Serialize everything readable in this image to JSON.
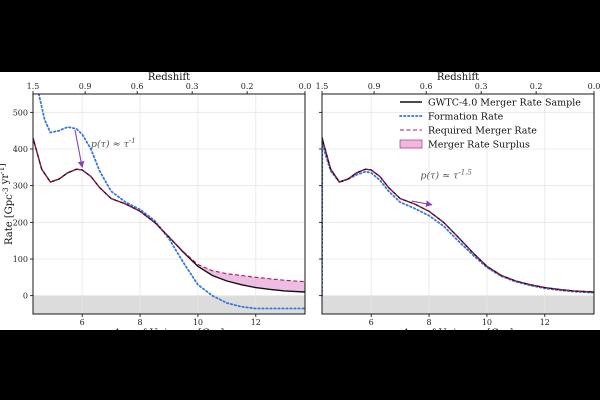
{
  "figure": {
    "colors": {
      "background": "#000000",
      "sample": "#111111",
      "formation": "#3a78d8",
      "required": "#b0155a",
      "surplus_fill": "#e8a8d8",
      "shade": "#dcdcdc",
      "arrow": "#8844aa",
      "grid": "#e6e6e6"
    }
  },
  "chart_data": [
    {
      "type": "line",
      "panel": "left",
      "xlabel": "Age of Universe [Gyr]",
      "ylabel": "Rate [Gpc^-3 yr^-1]",
      "top_axis_label": "Redshift",
      "xlim": [
        4.3,
        13.7
      ],
      "ylim": [
        -50,
        550
      ],
      "x_ticks": [
        6,
        8,
        10,
        12
      ],
      "y_ticks": [
        0,
        100,
        200,
        300,
        400,
        500
      ],
      "top_ticks": [
        {
          "age": 4.3,
          "label": "1.5"
        },
        {
          "age": 6.1,
          "label": "0.9"
        },
        {
          "age": 7.9,
          "label": "0.6"
        },
        {
          "age": 9.8,
          "label": "0.3"
        },
        {
          "age": 11.7,
          "label": "0.2"
        },
        {
          "age": 13.7,
          "label": "0.0"
        }
      ],
      "shaded_region": [
        -50,
        0
      ],
      "grid": true,
      "series": [
        {
          "name": "GWTC-4.0 Merger Rate Sample",
          "style": "solid",
          "x": [
            4.3,
            4.6,
            4.9,
            5.2,
            5.5,
            5.8,
            6.0,
            6.3,
            6.6,
            7.0,
            7.5,
            8.0,
            8.5,
            9.0,
            9.5,
            10.0,
            10.5,
            11.0,
            11.5,
            12.0,
            12.5,
            13.0,
            13.7
          ],
          "y": [
            430,
            345,
            310,
            318,
            335,
            345,
            343,
            325,
            295,
            265,
            250,
            230,
            200,
            160,
            118,
            80,
            55,
            40,
            30,
            22,
            17,
            13,
            10
          ]
        },
        {
          "name": "Formation Rate",
          "style": "dotted",
          "x": [
            4.5,
            4.7,
            4.9,
            5.2,
            5.5,
            5.8,
            6.0,
            6.3,
            6.6,
            7.0,
            7.5,
            8.0,
            8.5,
            9.0,
            9.5,
            10.0,
            10.5,
            11.0,
            11.5,
            12.0,
            12.5,
            13.0,
            13.7
          ],
          "y": [
            550,
            480,
            445,
            450,
            460,
            455,
            440,
            400,
            340,
            285,
            255,
            235,
            205,
            155,
            90,
            30,
            0,
            -20,
            -30,
            -35,
            -35,
            -35,
            -35
          ]
        },
        {
          "name": "Required Merger Rate",
          "style": "dashed",
          "x": [
            4.3,
            4.6,
            4.9,
            5.2,
            5.5,
            5.8,
            6.0,
            6.3,
            6.6,
            7.0,
            7.5,
            8.0,
            8.5,
            9.0,
            9.5,
            10.0,
            10.5,
            11.0,
            11.5,
            12.0,
            12.5,
            13.0,
            13.7
          ],
          "y": [
            430,
            345,
            310,
            318,
            335,
            345,
            343,
            325,
            295,
            265,
            250,
            230,
            200,
            160,
            120,
            85,
            68,
            60,
            55,
            50,
            46,
            42,
            38
          ]
        }
      ],
      "surplus_region": {
        "name": "Merger Rate Surplus",
        "x_start": 10.0
      },
      "annotation": {
        "text": "p(τ) ≈ τ^-1",
        "x": 6.3,
        "y": 405,
        "arrow_from": [
          5.75,
          452
        ],
        "arrow_to": [
          6.0,
          350
        ]
      }
    },
    {
      "type": "line",
      "panel": "right",
      "xlabel": "Age of Universe [Gyr]",
      "top_axis_label": "Redshift",
      "xlim": [
        4.3,
        13.7
      ],
      "ylim": [
        -50,
        550
      ],
      "x_ticks": [
        6,
        8,
        10,
        12
      ],
      "y_ticks": [
        0,
        100,
        200,
        300,
        400,
        500
      ],
      "top_ticks": [
        {
          "age": 4.3,
          "label": "1.5"
        },
        {
          "age": 6.1,
          "label": "0.9"
        },
        {
          "age": 7.9,
          "label": "0.6"
        },
        {
          "age": 9.8,
          "label": "0.3"
        },
        {
          "age": 11.7,
          "label": "0.2"
        },
        {
          "age": 13.7,
          "label": "0.0"
        }
      ],
      "shaded_region": [
        -50,
        0
      ],
      "grid": true,
      "legend": {
        "placement": "top-right"
      },
      "series": [
        {
          "name": "GWTC-4.0 Merger Rate Sample",
          "style": "solid",
          "x": [
            4.3,
            4.6,
            4.9,
            5.2,
            5.5,
            5.8,
            6.0,
            6.3,
            6.6,
            7.0,
            7.5,
            8.0,
            8.5,
            9.0,
            9.5,
            10.0,
            10.5,
            11.0,
            11.5,
            12.0,
            12.5,
            13.0,
            13.7
          ],
          "y": [
            430,
            345,
            310,
            318,
            335,
            345,
            343,
            325,
            295,
            265,
            250,
            230,
            200,
            160,
            118,
            80,
            55,
            40,
            30,
            22,
            17,
            13,
            10
          ]
        },
        {
          "name": "Formation Rate",
          "style": "dotted",
          "x": [
            4.3,
            4.31,
            4.4,
            4.6,
            4.9,
            5.2,
            5.5,
            5.8,
            6.0,
            6.3,
            6.6,
            7.0,
            7.5,
            8.0,
            8.5,
            9.0,
            9.5,
            10.0,
            10.5,
            11.0,
            11.5,
            12.0,
            12.5,
            13.0,
            13.7
          ],
          "y": [
            0,
            430,
            390,
            340,
            310,
            318,
            330,
            338,
            335,
            315,
            285,
            255,
            238,
            218,
            190,
            150,
            112,
            77,
            53,
            38,
            28,
            20,
            15,
            11,
            8
          ]
        },
        {
          "name": "Required Merger Rate",
          "style": "dashed",
          "x": [
            4.3,
            4.6,
            4.9,
            5.2,
            5.5,
            5.8,
            6.0,
            6.3,
            6.6,
            7.0,
            7.5,
            8.0,
            8.5,
            9.0,
            9.5,
            10.0,
            10.5,
            11.0,
            11.5,
            12.0,
            12.5,
            13.0,
            13.7
          ],
          "y": [
            430,
            345,
            310,
            318,
            335,
            345,
            343,
            325,
            295,
            265,
            250,
            230,
            200,
            160,
            118,
            80,
            55,
            40,
            30,
            22,
            17,
            13,
            10
          ]
        }
      ],
      "surplus_region": {
        "name": "Merger Rate Surplus"
      },
      "annotation": {
        "text": "p(τ) ≈ τ^-1.5",
        "x": 7.7,
        "y": 320,
        "arrow_from": [
          7.4,
          258
        ],
        "arrow_to": [
          8.1,
          248
        ]
      }
    }
  ]
}
